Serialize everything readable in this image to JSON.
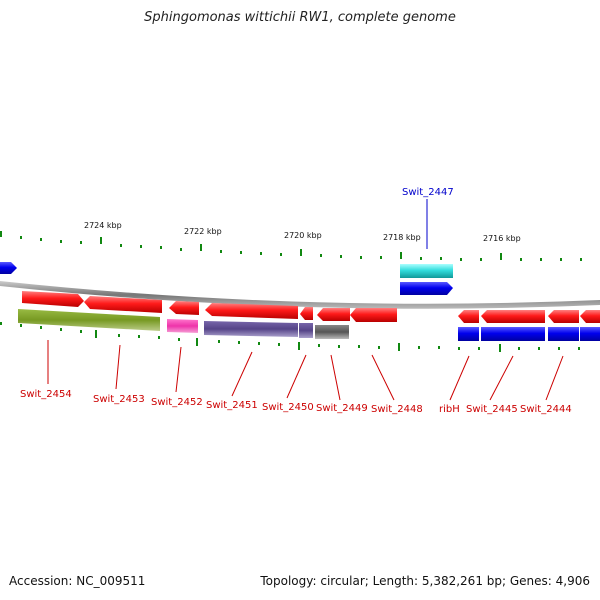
{
  "title": "Sphingomonas wittichii RW1, complete genome",
  "footer": {
    "accession": "Accession: NC_009511",
    "summary": "Topology: circular; Length: 5,382,261 bp; Genes: 4,906"
  },
  "scale": [
    "2724 kbp",
    "2722 kbp",
    "2720 kbp",
    "2718 kbp",
    "2716 kbp"
  ],
  "colors": {
    "forward_cds": "#ff1a1a",
    "reverse_cds": "#ff1a1a",
    "cog_blue": "#0000ee",
    "cog_cyan": "#33dddd",
    "cog_olive": "#779922",
    "cog_magenta": "#ee33aa",
    "cog_purple": "#554488",
    "cog_gray": "#666666",
    "backbone": "#888888",
    "tick": "#118811",
    "label_red": "#cc0000",
    "label_blue": "#0000cc"
  },
  "gene_labels": [
    {
      "name": "Swit_2454",
      "color": "red"
    },
    {
      "name": "Swit_2453",
      "color": "red"
    },
    {
      "name": "Swit_2452",
      "color": "red"
    },
    {
      "name": "Swit_2451",
      "color": "red"
    },
    {
      "name": "Swit_2450",
      "color": "red"
    },
    {
      "name": "Swit_2449",
      "color": "red"
    },
    {
      "name": "Swit_2448",
      "color": "red"
    },
    {
      "name": "ribH",
      "color": "red"
    },
    {
      "name": "Swit_2445",
      "color": "red"
    },
    {
      "name": "Swit_2444",
      "color": "red"
    },
    {
      "name": "Swit_2447",
      "color": "blue"
    }
  ]
}
